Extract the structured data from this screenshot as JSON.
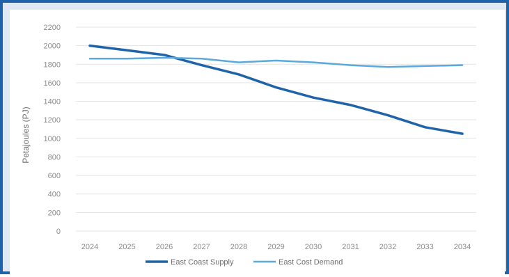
{
  "chart_data": {
    "type": "line",
    "title": "",
    "xlabel": "",
    "ylabel": "Petajoules (PJ)",
    "categories": [
      "2024",
      "2025",
      "2026",
      "2027",
      "2028",
      "2029",
      "2030",
      "2031",
      "2032",
      "2033",
      "2034"
    ],
    "ylim": [
      0,
      2200
    ],
    "yticks": [
      0,
      200,
      400,
      600,
      800,
      1000,
      1200,
      1400,
      1600,
      1800,
      2000,
      2200
    ],
    "grid": "horizontal",
    "legend": "bottom",
    "series": [
      {
        "name": "East Coast Supply",
        "color": "#1f64a8",
        "values": [
          2000,
          1950,
          1900,
          1790,
          1690,
          1550,
          1440,
          1360,
          1250,
          1120,
          1050
        ]
      },
      {
        "name": "East Cost Demand",
        "color": "#5aa8dc",
        "values": [
          1860,
          1860,
          1870,
          1860,
          1820,
          1840,
          1820,
          1790,
          1770,
          1780,
          1790
        ]
      }
    ]
  }
}
